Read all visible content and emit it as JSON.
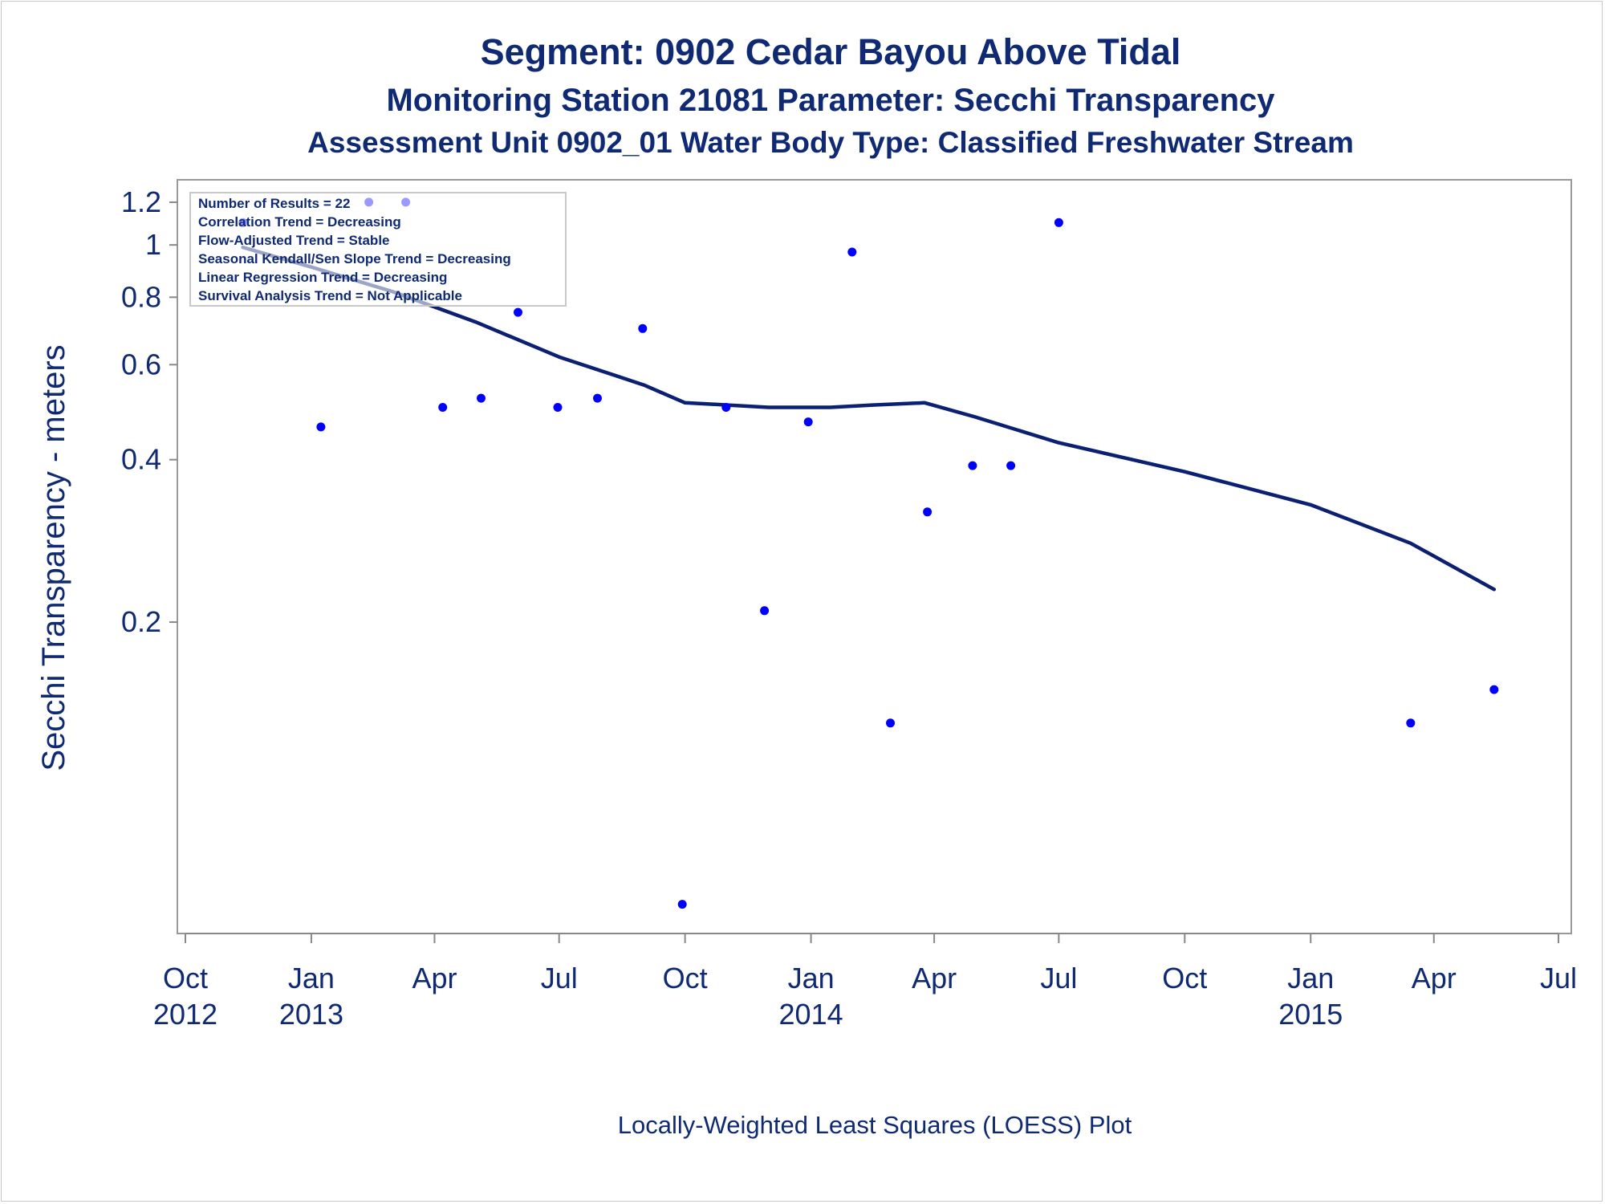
{
  "chart_data": {
    "type": "scatter",
    "title": "Segment: 0902  Cedar Bayou Above Tidal",
    "subtitle": "Monitoring Station 21081 Parameter: Secchi Transparency",
    "subtitle2": "Assessment Unit 0902_01   Water Body Type: Classified Freshwater Stream",
    "ylabel": "Secchi Transparency - meters",
    "footnote": "Locally-Weighted Least Squares (LOESS) Plot",
    "yscale": "log",
    "ylim": [
      0.055,
      1.25
    ],
    "xlim": [
      "2012-10-01",
      "2015-07-01"
    ],
    "grid": false,
    "y_ticks": [
      {
        "value": 1.2,
        "label": "1.2"
      },
      {
        "value": 1.0,
        "label": "1"
      },
      {
        "value": 0.8,
        "label": "0.8"
      },
      {
        "value": 0.6,
        "label": "0.6"
      },
      {
        "value": 0.4,
        "label": "0.4"
      },
      {
        "value": 0.2,
        "label": "0.2"
      }
    ],
    "x_ticks": [
      {
        "value": "2012-10-01",
        "line1": "Oct",
        "line2": "2012"
      },
      {
        "value": "2013-01-01",
        "line1": "Jan",
        "line2": "2013"
      },
      {
        "value": "2013-04-01",
        "line1": "Apr",
        "line2": ""
      },
      {
        "value": "2013-07-01",
        "line1": "Jul",
        "line2": ""
      },
      {
        "value": "2013-10-01",
        "line1": "Oct",
        "line2": ""
      },
      {
        "value": "2014-01-01",
        "line1": "Jan",
        "line2": "2014"
      },
      {
        "value": "2014-04-01",
        "line1": "Apr",
        "line2": ""
      },
      {
        "value": "2014-07-01",
        "line1": "Jul",
        "line2": ""
      },
      {
        "value": "2014-10-01",
        "line1": "Oct",
        "line2": ""
      },
      {
        "value": "2015-01-01",
        "line1": "Jan",
        "line2": "2015"
      },
      {
        "value": "2015-04-01",
        "line1": "Apr",
        "line2": ""
      },
      {
        "value": "2015-07-01",
        "line1": "Jul",
        "line2": ""
      }
    ],
    "legend_placement": "top-left",
    "legend_lines": [
      "Number of Results = 22",
      "Correlation Trend = Decreasing",
      "Flow-Adjusted Trend = Stable",
      "Seasonal Kendall/Sen Slope Trend = Decreasing",
      "Linear Regression Trend = Decreasing",
      "Survival Analysis Trend = Not Applicable"
    ],
    "points": [
      {
        "x": "2012-11-12",
        "y": 1.1
      },
      {
        "x": "2013-01-08",
        "y": 0.46
      },
      {
        "x": "2013-02-12",
        "y": 1.2
      },
      {
        "x": "2013-03-11",
        "y": 1.2
      },
      {
        "x": "2013-04-07",
        "y": 0.5
      },
      {
        "x": "2013-05-05",
        "y": 0.52
      },
      {
        "x": "2013-06-01",
        "y": 0.75
      },
      {
        "x": "2013-06-30",
        "y": 0.5
      },
      {
        "x": "2013-07-29",
        "y": 0.52
      },
      {
        "x": "2013-08-31",
        "y": 0.7
      },
      {
        "x": "2013-09-29",
        "y": 0.06
      },
      {
        "x": "2013-10-31",
        "y": 0.5
      },
      {
        "x": "2013-11-28",
        "y": 0.21
      },
      {
        "x": "2013-12-30",
        "y": 0.47
      },
      {
        "x": "2014-01-31",
        "y": 0.97
      },
      {
        "x": "2014-02-28",
        "y": 0.13
      },
      {
        "x": "2014-03-27",
        "y": 0.32
      },
      {
        "x": "2014-04-29",
        "y": 0.39
      },
      {
        "x": "2014-05-27",
        "y": 0.39
      },
      {
        "x": "2014-07-01",
        "y": 1.1
      },
      {
        "x": "2015-03-15",
        "y": 0.13
      },
      {
        "x": "2015-05-15",
        "y": 0.15
      }
    ],
    "loess": [
      {
        "x": "2012-11-12",
        "y": 0.99
      },
      {
        "x": "2013-01-01",
        "y": 0.91
      },
      {
        "x": "2013-03-01",
        "y": 0.82
      },
      {
        "x": "2013-05-01",
        "y": 0.72
      },
      {
        "x": "2013-07-01",
        "y": 0.62
      },
      {
        "x": "2013-09-01",
        "y": 0.55
      },
      {
        "x": "2013-10-01",
        "y": 0.51
      },
      {
        "x": "2013-11-01",
        "y": 0.505
      },
      {
        "x": "2013-12-01",
        "y": 0.5
      },
      {
        "x": "2014-01-15",
        "y": 0.5
      },
      {
        "x": "2014-02-15",
        "y": 0.505
      },
      {
        "x": "2014-03-25",
        "y": 0.51
      },
      {
        "x": "2014-05-01",
        "y": 0.48
      },
      {
        "x": "2014-07-01",
        "y": 0.43
      },
      {
        "x": "2014-10-01",
        "y": 0.38
      },
      {
        "x": "2015-01-01",
        "y": 0.33
      },
      {
        "x": "2015-03-15",
        "y": 0.28
      },
      {
        "x": "2015-05-15",
        "y": 0.23
      }
    ],
    "colors": {
      "points": "#0000ff",
      "loess": "#0b1f73",
      "text": "#0f2a73",
      "axis": "#888888"
    }
  }
}
